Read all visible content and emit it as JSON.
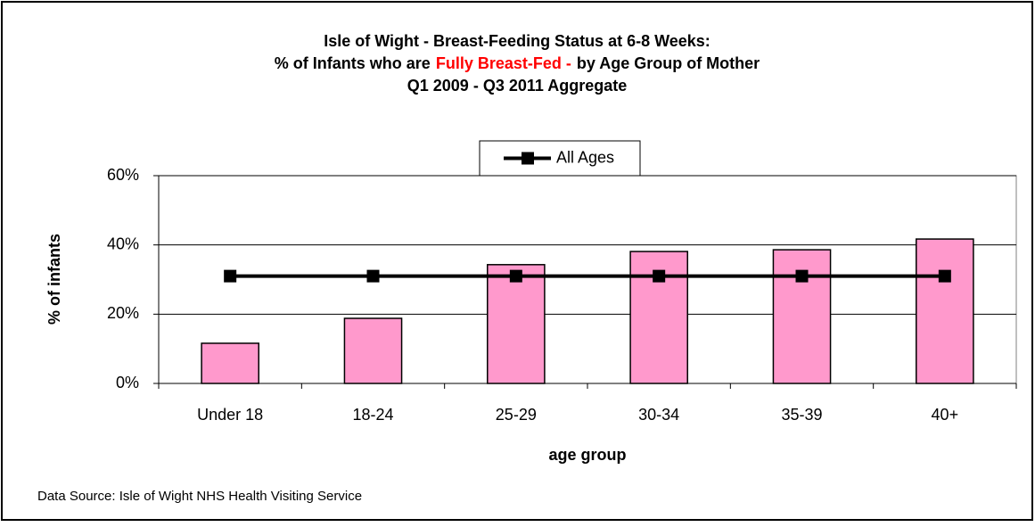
{
  "chart_data": {
    "type": "bar",
    "title": {
      "line1": "Isle of Wight - Breast-Feeding Status at 6-8 Weeks:",
      "line2": [
        "% of Infants who are",
        "Fully Breast-Fed -",
        "by Age Group of Mother"
      ],
      "line3": "Q1 2009 - Q3 2011 Aggregate"
    },
    "x_label": "age group",
    "y_label": "% of infants",
    "categories": [
      "Under 18",
      "18-24",
      "25-29",
      "30-34",
      "35-39",
      "40+"
    ],
    "series": [
      {
        "type": "bar",
        "color": "#ff99cc",
        "values": [
          11.6,
          18.8,
          34.3,
          38.1,
          38.6,
          41.7
        ]
      },
      {
        "type": "line",
        "name": "All Ages",
        "color": "#000000",
        "values": [
          31,
          31,
          31,
          31,
          31,
          31
        ]
      }
    ],
    "ylim": [
      0,
      60
    ],
    "yticks": [
      {
        "value": 0,
        "label": "0%"
      },
      {
        "value": 20,
        "label": "20%"
      },
      {
        "value": 40,
        "label": "40%"
      },
      {
        "value": 60,
        "label": "60%"
      }
    ],
    "grid": true,
    "legend": "top",
    "source": "Data Source: Isle of Wight NHS Health Visiting Service"
  }
}
